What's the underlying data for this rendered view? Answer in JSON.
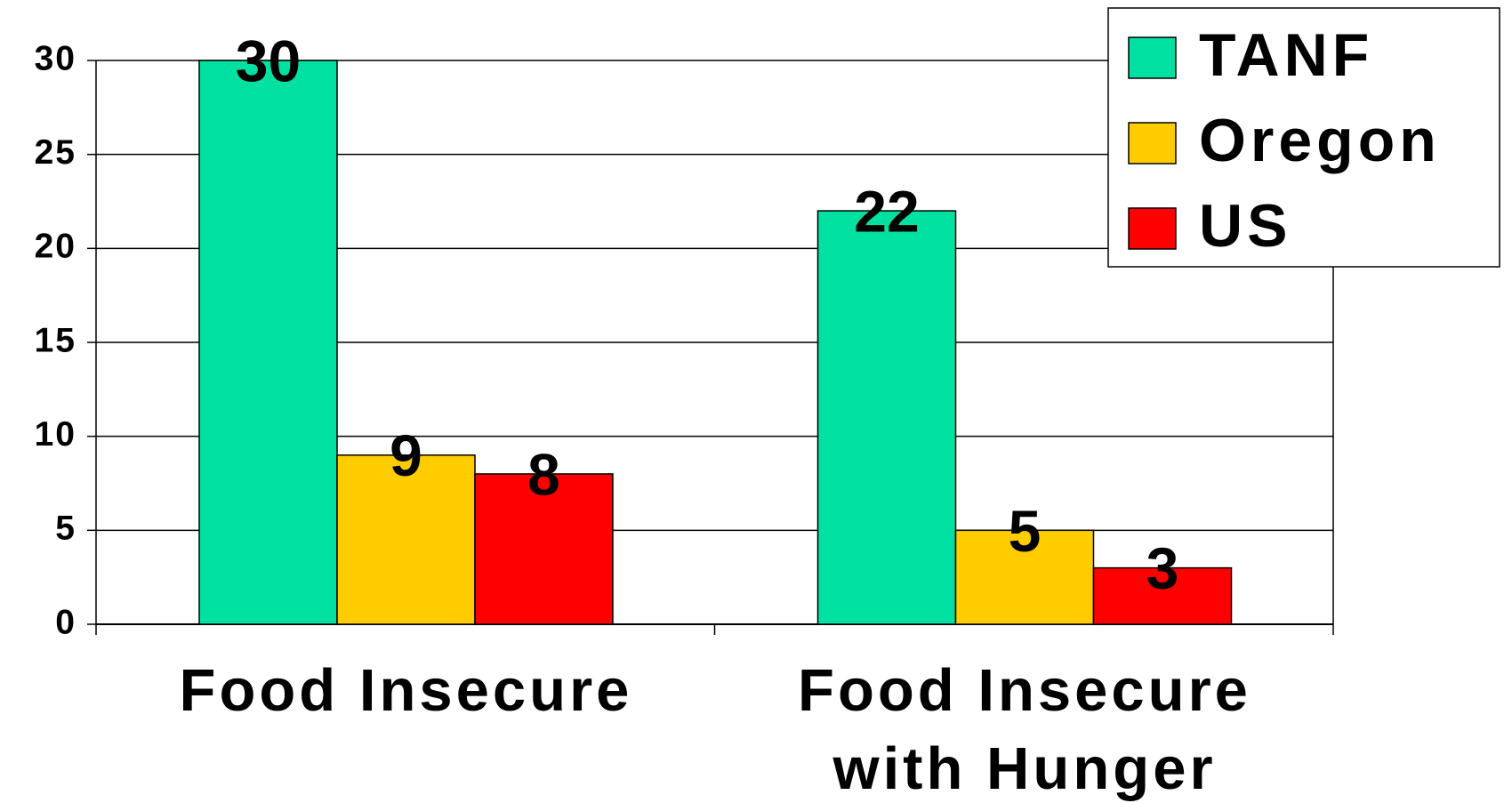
{
  "chart_data": {
    "type": "bar",
    "categories": [
      "Food Insecure",
      "Food Insecure with Hunger"
    ],
    "series": [
      {
        "name": "TANF",
        "color": "#00e0a0",
        "values": [
          30,
          22
        ]
      },
      {
        "name": "Oregon",
        "color": "#ffcc00",
        "values": [
          9,
          5
        ]
      },
      {
        "name": "US",
        "color": "#ff0000",
        "values": [
          8,
          3
        ]
      }
    ],
    "ylim": [
      0,
      30
    ],
    "yticks": [
      0,
      5,
      10,
      15,
      20,
      25,
      30
    ],
    "grid": true,
    "legend": "upper right"
  }
}
